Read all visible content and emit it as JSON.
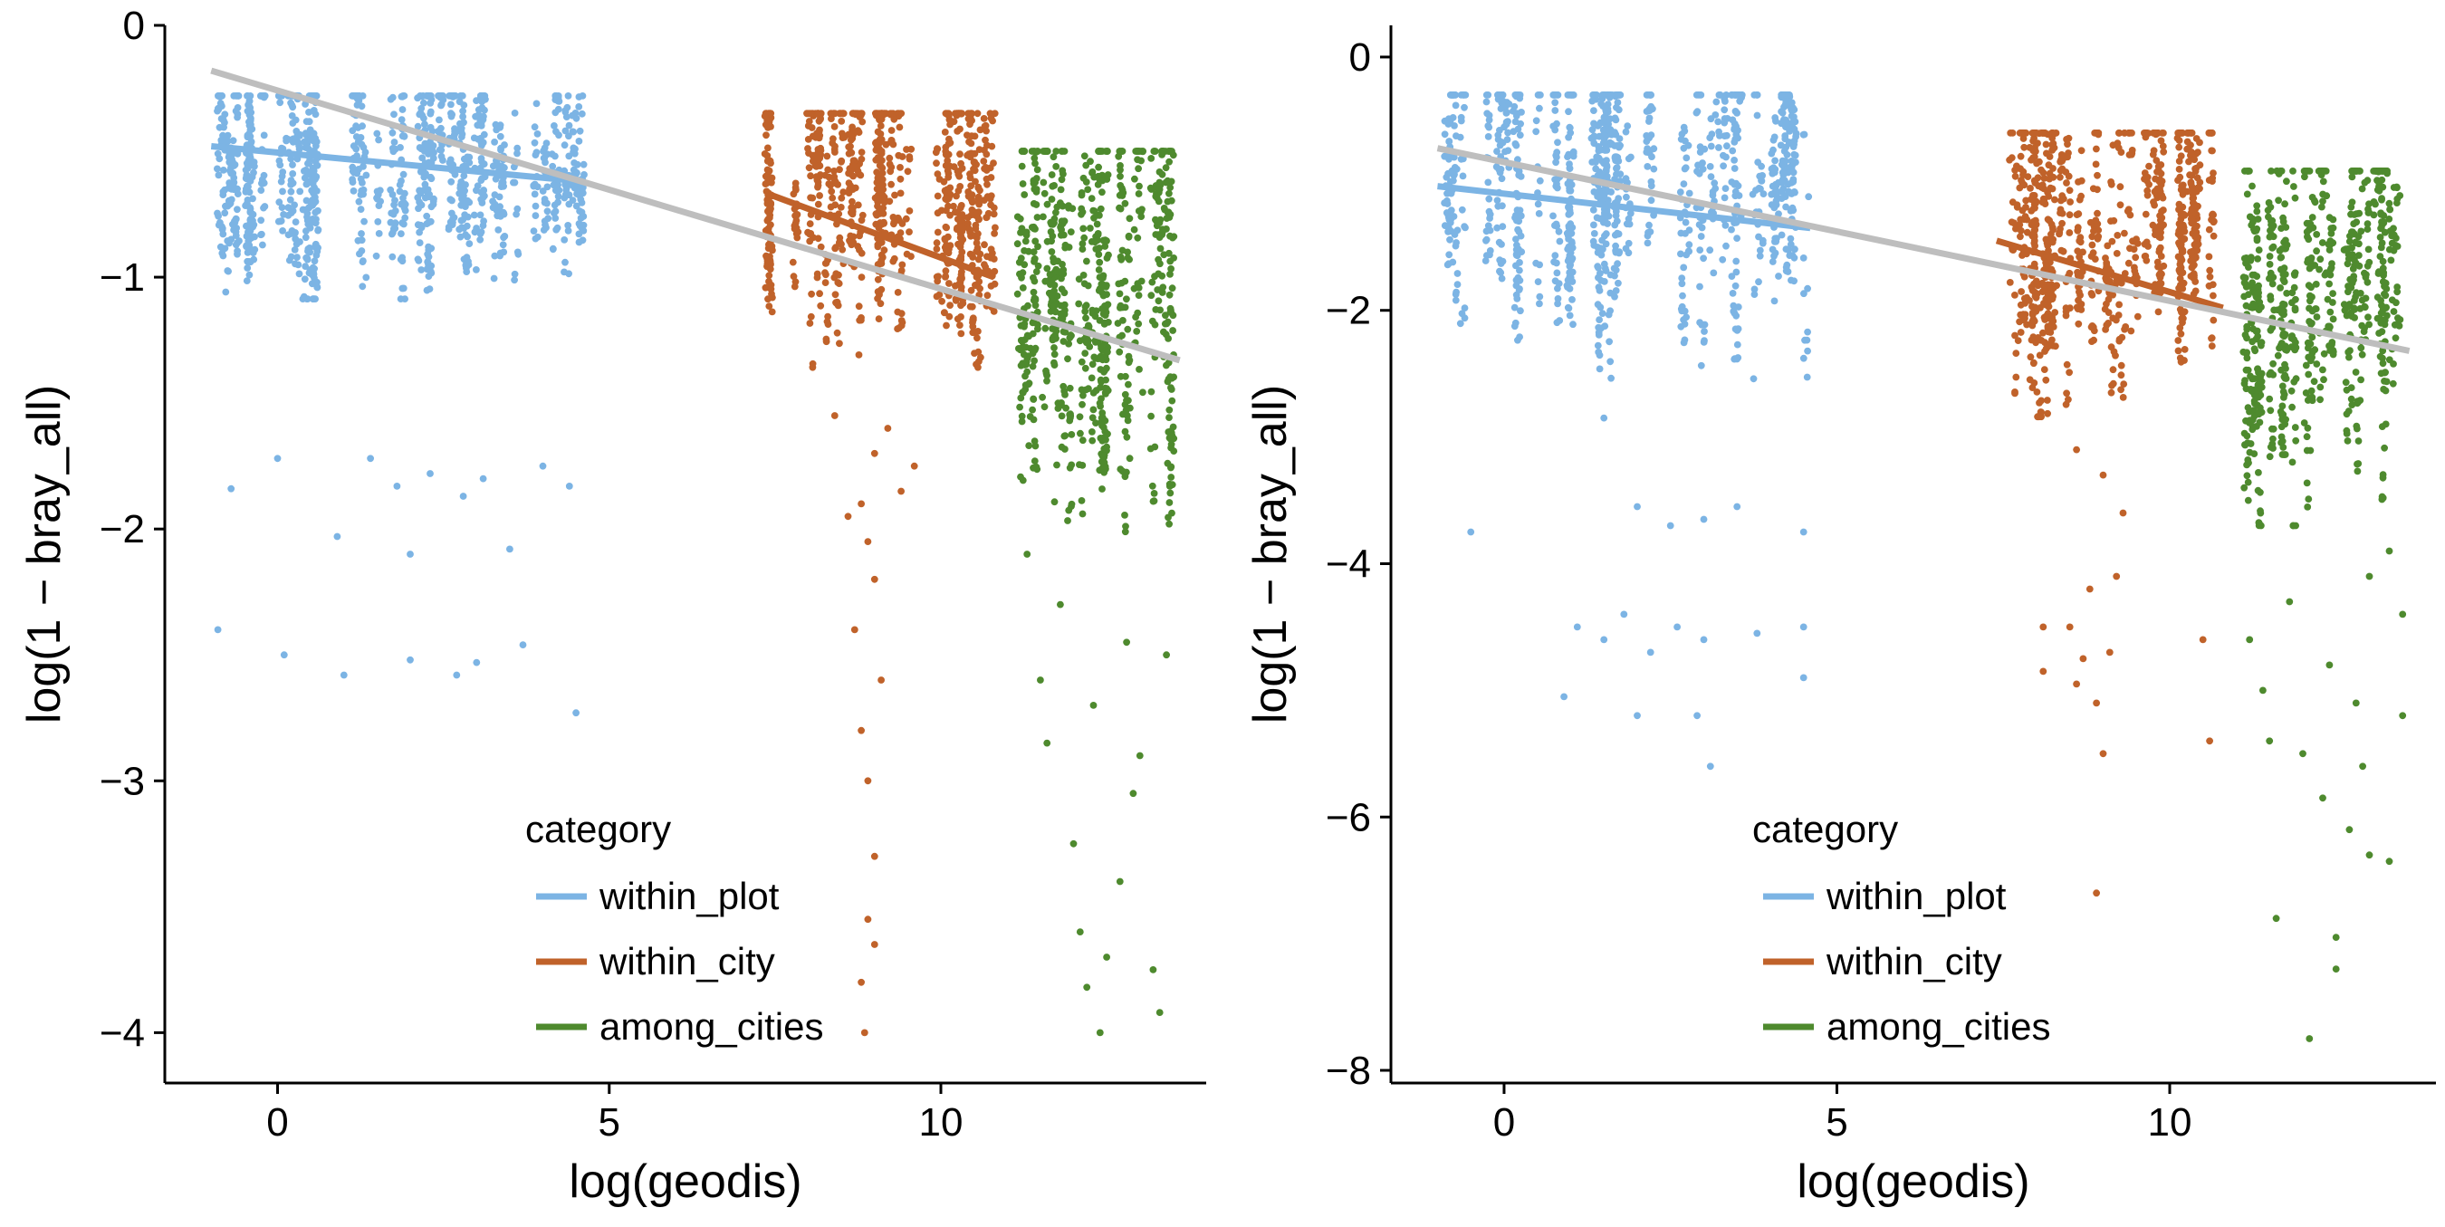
{
  "chart_data": [
    {
      "type": "scatter",
      "title": "",
      "xlabel": "log(geodis)",
      "ylabel": "log(1 − bray_all)",
      "xlim": [
        -1.7,
        14.0
      ],
      "ylim": [
        -4.2,
        0.0
      ],
      "x_ticks": [
        0,
        5,
        10
      ],
      "x_tick_labels": [
        "0",
        "5",
        "10"
      ],
      "y_ticks": [
        0,
        -1,
        -2,
        -3,
        -4
      ],
      "y_tick_labels": [
        "0",
        "−1",
        "−2",
        "−3",
        "−4"
      ],
      "legend": {
        "title": "category",
        "placement": "bottom-center",
        "entries": [
          "within_plot",
          "within_city",
          "among_cities"
        ]
      },
      "series": [
        {
          "name": "within_plot",
          "color": "#7CB4E4",
          "x_range": [
            -1.0,
            4.6
          ],
          "bulk_y_range": [
            -1.0,
            -0.28
          ],
          "regression_line": {
            "x": [
              -1.0,
              4.6
            ],
            "y": [
              -0.48,
              -0.62
            ]
          },
          "scatter_points": [
            [
              -0.9,
              -2.4
            ],
            [
              0.1,
              -2.5
            ],
            [
              1.0,
              -2.58
            ],
            [
              2.0,
              -2.52
            ],
            [
              2.7,
              -2.58
            ],
            [
              3.0,
              -2.53
            ],
            [
              3.7,
              -2.46
            ],
            [
              4.5,
              -2.73
            ],
            [
              0.0,
              -1.72
            ],
            [
              0.9,
              -2.03
            ],
            [
              2.0,
              -2.1
            ],
            [
              3.5,
              -2.08
            ],
            [
              -0.7,
              -1.84
            ],
            [
              1.8,
              -1.83
            ],
            [
              2.8,
              -1.87
            ],
            [
              3.1,
              -1.8
            ],
            [
              4.0,
              -1.75
            ],
            [
              4.4,
              -1.83
            ],
            [
              2.3,
              -1.78
            ],
            [
              1.4,
              -1.72
            ]
          ]
        },
        {
          "name": "within_city",
          "color": "#C0622A",
          "x_range": [
            7.3,
            10.8
          ],
          "bulk_y_range": [
            -1.25,
            -0.35
          ],
          "regression_line": {
            "x": [
              7.4,
              10.8
            ],
            "y": [
              -0.67,
              -1.0
            ]
          },
          "scatter_points": [
            [
              8.8,
              -3.8
            ],
            [
              8.9,
              -3.55
            ],
            [
              9.0,
              -3.3
            ],
            [
              8.9,
              -3.0
            ],
            [
              8.8,
              -2.8
            ],
            [
              9.1,
              -2.6
            ],
            [
              8.7,
              -2.4
            ],
            [
              9.0,
              -2.2
            ],
            [
              8.8,
              -1.9
            ],
            [
              9.0,
              -1.7
            ],
            [
              8.9,
              -2.05
            ],
            [
              9.2,
              -1.6
            ],
            [
              9.0,
              -3.65
            ],
            [
              8.85,
              -4.0
            ],
            [
              9.4,
              -1.85
            ],
            [
              8.4,
              -1.55
            ],
            [
              8.6,
              -1.95
            ],
            [
              9.6,
              -1.75
            ]
          ]
        },
        {
          "name": "among_cities",
          "color": "#4E8A2E",
          "x_range": [
            11.1,
            13.6
          ],
          "bulk_y_range": [
            -1.9,
            -0.5
          ],
          "regression_line": null,
          "scatter_points": [
            [
              11.5,
              -2.6
            ],
            [
              11.6,
              -2.85
            ],
            [
              12.0,
              -3.25
            ],
            [
              12.1,
              -3.6
            ],
            [
              12.4,
              -4.0
            ],
            [
              12.5,
              -3.7
            ],
            [
              12.7,
              -3.4
            ],
            [
              12.9,
              -3.05
            ],
            [
              13.2,
              -3.75
            ],
            [
              13.3,
              -3.92
            ],
            [
              12.3,
              -2.7
            ],
            [
              12.8,
              -2.45
            ],
            [
              11.8,
              -2.3
            ],
            [
              13.0,
              -2.9
            ],
            [
              12.2,
              -3.82
            ],
            [
              11.3,
              -2.1
            ],
            [
              13.4,
              -2.5
            ]
          ]
        }
      ],
      "overall_regression_line": {
        "color": "#BEBEBE",
        "x": [
          -1.0,
          13.6
        ],
        "y": [
          -0.18,
          -1.33
        ]
      }
    },
    {
      "type": "scatter",
      "title": "",
      "xlabel": "log(geodis)",
      "ylabel": "log(1 − bray_all)",
      "xlim": [
        -1.7,
        14.0
      ],
      "ylim": [
        -8.1,
        0.25
      ],
      "x_ticks": [
        0,
        5,
        10
      ],
      "x_tick_labels": [
        "0",
        "5",
        "10"
      ],
      "y_ticks": [
        0,
        -2,
        -4,
        -6,
        -8
      ],
      "y_tick_labels": [
        "0",
        "−2",
        "−4",
        "−6",
        "−8"
      ],
      "legend": {
        "title": "category",
        "placement": "bottom-center",
        "entries": [
          "within_plot",
          "within_city",
          "among_cities"
        ]
      },
      "series": [
        {
          "name": "within_plot",
          "color": "#7CB4E4",
          "x_range": [
            -1.0,
            4.6
          ],
          "bulk_y_range": [
            -2.3,
            -0.3
          ],
          "regression_line": {
            "x": [
              -1.0,
              4.6
            ],
            "y": [
              -1.02,
              -1.35
            ]
          },
          "scatter_points": [
            [
              -0.5,
              -3.75
            ],
            [
              2.0,
              -3.55
            ],
            [
              2.5,
              -3.7
            ],
            [
              3.0,
              -3.65
            ],
            [
              3.5,
              -3.55
            ],
            [
              4.5,
              -3.75
            ],
            [
              1.1,
              -4.5
            ],
            [
              1.5,
              -4.6
            ],
            [
              1.8,
              -4.4
            ],
            [
              2.2,
              -4.7
            ],
            [
              2.6,
              -4.5
            ],
            [
              3.0,
              -4.6
            ],
            [
              3.8,
              -4.55
            ],
            [
              4.5,
              -4.9
            ],
            [
              0.9,
              -5.05
            ],
            [
              2.0,
              -5.2
            ],
            [
              2.9,
              -5.2
            ],
            [
              3.1,
              -5.6
            ],
            [
              4.5,
              -4.5
            ],
            [
              1.5,
              -2.85
            ]
          ]
        },
        {
          "name": "within_city",
          "color": "#C0622A",
          "x_range": [
            7.3,
            10.8
          ],
          "bulk_y_range": [
            -2.6,
            -0.6
          ],
          "regression_line": {
            "x": [
              7.4,
              10.8
            ],
            "y": [
              -1.45,
              -1.98
            ]
          },
          "scatter_points": [
            [
              8.9,
              -6.6
            ],
            [
              8.1,
              -4.5
            ],
            [
              8.1,
              -4.85
            ],
            [
              8.5,
              -4.5
            ],
            [
              8.6,
              -4.95
            ],
            [
              8.8,
              -4.2
            ],
            [
              8.9,
              -5.1
            ],
            [
              9.0,
              -5.5
            ],
            [
              9.1,
              -4.7
            ],
            [
              9.2,
              -4.1
            ],
            [
              10.5,
              -4.6
            ],
            [
              10.6,
              -5.4
            ],
            [
              8.7,
              -4.75
            ],
            [
              9.0,
              -3.3
            ],
            [
              9.3,
              -3.6
            ],
            [
              8.6,
              -3.1
            ]
          ]
        },
        {
          "name": "among_cities",
          "color": "#4E8A2E",
          "x_range": [
            11.1,
            13.6
          ],
          "bulk_y_range": [
            -3.4,
            -0.9
          ],
          "regression_line": null,
          "scatter_points": [
            [
              12.1,
              -7.75
            ],
            [
              12.5,
              -7.2
            ],
            [
              12.5,
              -6.95
            ],
            [
              11.6,
              -6.8
            ],
            [
              13.0,
              -6.3
            ],
            [
              12.7,
              -6.1
            ],
            [
              12.3,
              -5.85
            ],
            [
              13.3,
              -6.35
            ],
            [
              11.5,
              -5.4
            ],
            [
              12.0,
              -5.5
            ],
            [
              11.4,
              -5.0
            ],
            [
              13.5,
              -5.2
            ],
            [
              12.9,
              -5.6
            ],
            [
              11.8,
              -4.3
            ],
            [
              12.4,
              -4.8
            ],
            [
              13.0,
              -4.1
            ],
            [
              13.3,
              -3.9
            ],
            [
              11.2,
              -4.6
            ],
            [
              12.8,
              -5.1
            ],
            [
              13.5,
              -4.4
            ]
          ]
        }
      ],
      "overall_regression_line": {
        "color": "#BEBEBE",
        "x": [
          -1.0,
          13.6
        ],
        "y": [
          -0.72,
          -2.32
        ]
      }
    }
  ]
}
